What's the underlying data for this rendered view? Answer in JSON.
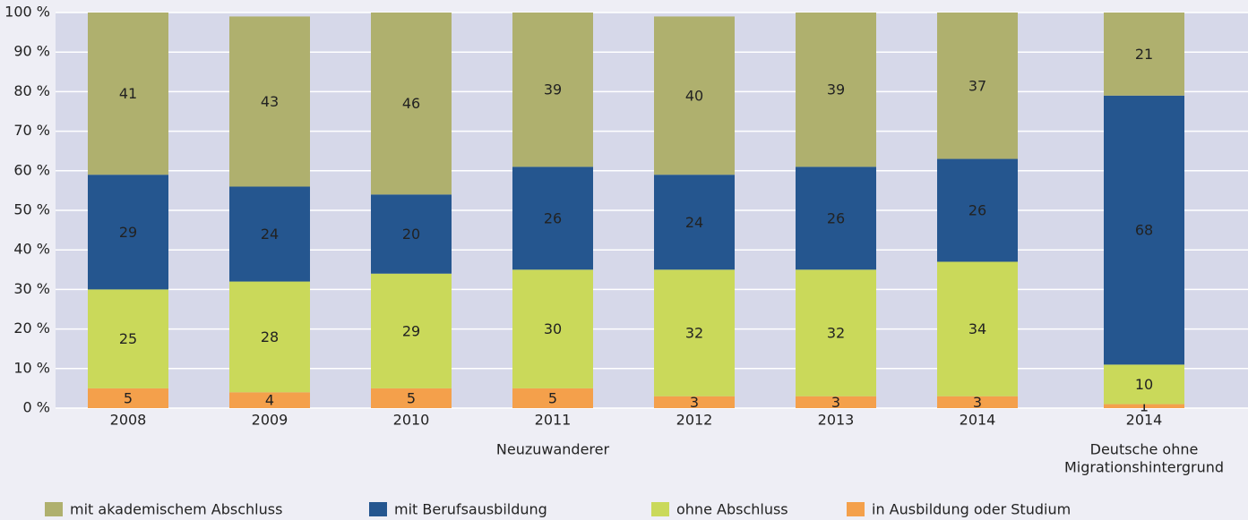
{
  "chart_data": {
    "type": "stacked_bar",
    "groups": [
      {
        "name": [
          "Neuzuwanderer"
        ],
        "categories": [
          "2008",
          "2009",
          "2010",
          "2011",
          "2012",
          "2013",
          "2014"
        ]
      },
      {
        "name": [
          "Deutsche ohne",
          "Migrationshintergrund"
        ],
        "categories": [
          "2014"
        ]
      }
    ],
    "series": [
      {
        "name": "mit akademischem Abschluss",
        "color": "#afb06e",
        "values": [
          41,
          43,
          46,
          39,
          40,
          39,
          37,
          21
        ]
      },
      {
        "name": "mit Berufsausbildung",
        "color": "#25568f",
        "values": [
          29,
          24,
          20,
          26,
          24,
          26,
          26,
          68
        ]
      },
      {
        "name": "ohne Abschluss",
        "color": "#cad95a",
        "values": [
          25,
          28,
          29,
          30,
          32,
          32,
          34,
          10
        ]
      },
      {
        "name": "in Ausbildung oder Studium",
        "color": "#f4a04b",
        "values": [
          5,
          4,
          5,
          5,
          3,
          3,
          3,
          1
        ]
      }
    ],
    "ylim": [
      0,
      100
    ],
    "yticks": [
      {
        "value": 0,
        "label": "0 %"
      },
      {
        "value": 10,
        "label": "10 %"
      },
      {
        "value": 20,
        "label": "20 %"
      },
      {
        "value": 30,
        "label": "30 %"
      },
      {
        "value": 40,
        "label": "40 %"
      },
      {
        "value": 50,
        "label": "50 %"
      },
      {
        "value": 60,
        "label": "60 %"
      },
      {
        "value": 70,
        "label": "70 %"
      },
      {
        "value": 80,
        "label": "80 %"
      },
      {
        "value": 90,
        "label": "90 %"
      },
      {
        "value": 100,
        "label": "100 %"
      }
    ],
    "grid": true
  }
}
